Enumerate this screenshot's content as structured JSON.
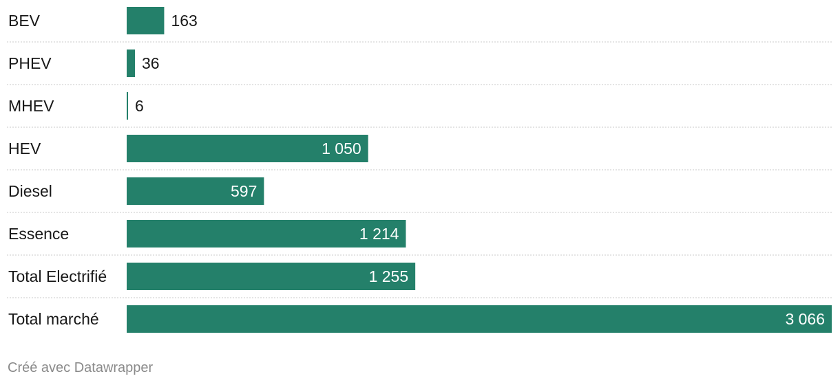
{
  "chart_data": {
    "type": "bar",
    "orientation": "horizontal",
    "categories": [
      "BEV",
      "PHEV",
      "MHEV",
      "HEV",
      "Diesel",
      "Essence",
      "Total Electrifié",
      "Total marché"
    ],
    "values": [
      163,
      36,
      6,
      1050,
      597,
      1214,
      1255,
      3066
    ],
    "value_labels": [
      "163",
      "36",
      "6",
      "1 050",
      "597",
      "1 214",
      "1 255",
      "3 066"
    ],
    "xlim": [
      0,
      3066
    ],
    "grid": false,
    "bar_color": "#24806a",
    "separator_style": "dotted",
    "title": "",
    "xlabel": "",
    "ylabel": ""
  },
  "footer": {
    "credit": "Créé avec Datawrapper"
  }
}
